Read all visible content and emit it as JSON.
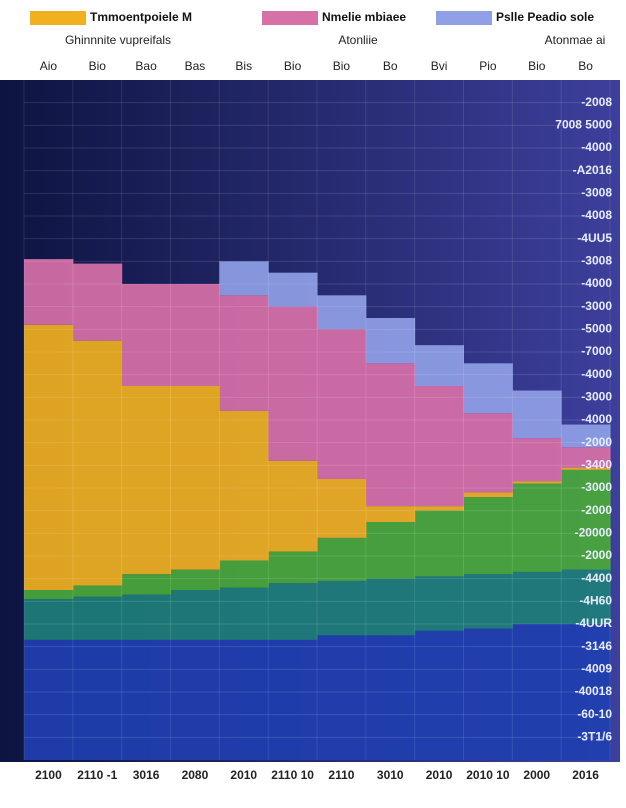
{
  "chart_data": {
    "type": "step-area",
    "subtitles": [
      "Ghinnnite vupreifals",
      "Atonliie",
      "Atonmae ai"
    ],
    "x_top_labels": [
      "Aio",
      "Bio",
      "Bao",
      "Bas",
      "Bis",
      "Bio",
      "Bio",
      "Bo",
      "Bvi",
      "Pio",
      "Bio",
      "Bo"
    ],
    "categories": [
      "2100",
      "2110 -1",
      "3016",
      "2080",
      "2010",
      "2110 10",
      "2110",
      "3010",
      "2010",
      "2010 10",
      "2000",
      "2016"
    ],
    "series": [
      {
        "color": "#1f3fb0",
        "values": [
          5.3,
          5.3,
          5.3,
          5.3,
          5.3,
          5.3,
          5.5,
          5.5,
          5.7,
          5.8,
          6,
          6
        ]
      },
      {
        "color": "#1e7e7a",
        "values": [
          1.8,
          1.9,
          2,
          2.2,
          2.3,
          2.5,
          2.4,
          2.5,
          2.4,
          2.4,
          2.3,
          2.4
        ]
      },
      {
        "color": "#4aa83a",
        "values": [
          0.4,
          0.5,
          0.9,
          0.9,
          1.2,
          1.4,
          1.9,
          2.5,
          2.9,
          3.4,
          3.9,
          4.4
        ]
      },
      {
        "name": "Tmmoentpoiele M",
        "color": "#f0b020",
        "values": [
          11.7,
          10.8,
          8.3,
          8.1,
          6.6,
          4,
          2.6,
          0.7,
          0.2,
          0.2,
          0.1,
          0.1
        ]
      },
      {
        "name": "Nmelie mbiaee",
        "color": "#d870a8",
        "values": [
          2.9,
          3.4,
          4.5,
          4.5,
          5.1,
          6.8,
          6.6,
          6.3,
          5.3,
          3.5,
          1.9,
          0.9
        ]
      },
      {
        "name": "Pslle Peadio sole",
        "color": "#8fa0e6",
        "values": [
          0,
          0,
          0,
          0,
          1.5,
          1.5,
          1.5,
          2,
          1.8,
          2.2,
          2.1,
          1
        ]
      }
    ],
    "ylim": [
      0,
      30
    ],
    "yticks": [
      {
        "value": 1,
        "label": "-3T1/6"
      },
      {
        "value": 2,
        "label": "-60-10"
      },
      {
        "value": 3,
        "label": "-40018"
      },
      {
        "value": 4,
        "label": "-4009"
      },
      {
        "value": 5,
        "label": "-3146"
      },
      {
        "value": 6,
        "label": "-4UUR"
      },
      {
        "value": 7,
        "label": "-4H60"
      },
      {
        "value": 8,
        "label": "-4400"
      },
      {
        "value": 9,
        "label": "-2000"
      },
      {
        "value": 10,
        "label": "-20000"
      },
      {
        "value": 11,
        "label": "-2000"
      },
      {
        "value": 12,
        "label": "-3000"
      },
      {
        "value": 13,
        "label": "-3400"
      },
      {
        "value": 14,
        "label": "-2000"
      },
      {
        "value": 15,
        "label": "-4000"
      },
      {
        "value": 16,
        "label": "-3000"
      },
      {
        "value": 17,
        "label": "-4000"
      },
      {
        "value": 18,
        "label": "-7000"
      },
      {
        "value": 19,
        "label": "-5000"
      },
      {
        "value": 20,
        "label": "-3000"
      },
      {
        "value": 21,
        "label": "-4000"
      },
      {
        "value": 22,
        "label": "-3008"
      },
      {
        "value": 23,
        "label": "-4UU5"
      },
      {
        "value": 24,
        "label": "-4008"
      },
      {
        "value": 25,
        "label": "-3008"
      },
      {
        "value": 26,
        "label": "-A2016"
      },
      {
        "value": 27,
        "label": "-4000"
      },
      {
        "value": 28,
        "label": "7008 5000"
      },
      {
        "value": 29,
        "label": "-2008"
      }
    ],
    "grid": true
  }
}
